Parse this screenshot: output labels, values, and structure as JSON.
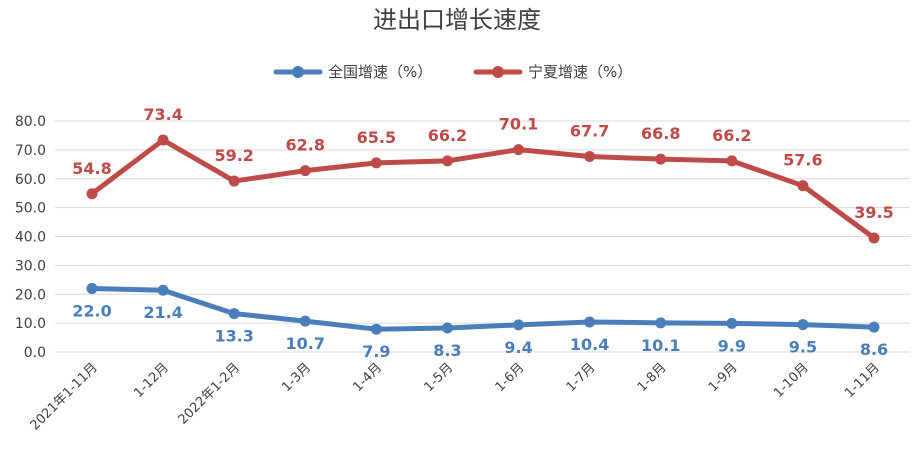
{
  "chart_data": {
    "type": "line",
    "title": "进出口增长速度",
    "categories": [
      "2021年1-11月",
      "1-12月",
      "2022年1-2月",
      "1-3月",
      "1-4月",
      "1-5月",
      "1-6月",
      "1-7月",
      "1-8月",
      "1-9月",
      "1-10月",
      "1-11月"
    ],
    "series": [
      {
        "name": "全国增速（%）",
        "color": "#4a7ebb",
        "values": [
          22.0,
          21.4,
          13.3,
          10.7,
          7.9,
          8.3,
          9.4,
          10.4,
          10.1,
          9.9,
          9.5,
          8.6
        ]
      },
      {
        "name": "宁夏增速（%）",
        "color": "#be4b48",
        "values": [
          54.8,
          73.4,
          59.2,
          62.8,
          65.5,
          66.2,
          70.1,
          67.7,
          66.8,
          66.2,
          57.6,
          39.5
        ]
      }
    ],
    "ylim": [
      0,
      80
    ],
    "yticks": [
      "0.0",
      "10.0",
      "20.0",
      "30.0",
      "40.0",
      "50.0",
      "60.0",
      "70.0",
      "80.0"
    ],
    "grid": true,
    "legend": "top-center",
    "xlabel": "",
    "ylabel": ""
  }
}
